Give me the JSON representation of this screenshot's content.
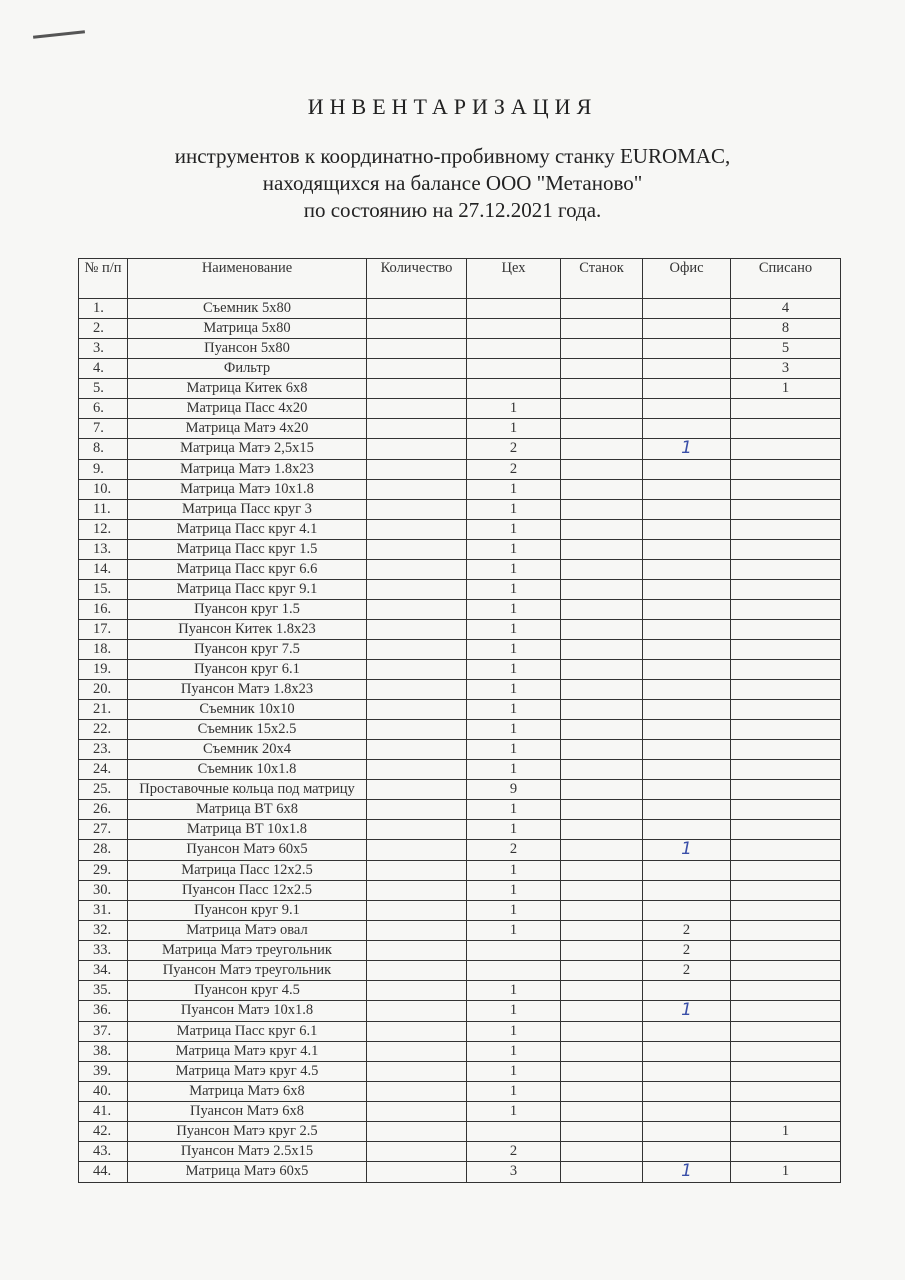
{
  "document": {
    "title": "ИНВЕНТАРИЗАЦИЯ",
    "subtitle_lines": [
      "инструментов к координатно-пробивному станку EUROMAC,",
      "находящихся на балансе ООО \"Метаново\"",
      "по состоянию на 27.12.2021 года."
    ]
  },
  "table": {
    "headers": [
      "№ п/п",
      "Наименование",
      "Количество",
      "Цех",
      "Станок",
      "Офис",
      "Списано"
    ],
    "handwritten_color": "#3a4fa8",
    "rows": [
      [
        "1.",
        "Съемник 5х80",
        "",
        "",
        "",
        "",
        "4"
      ],
      [
        "2.",
        "Матрица 5х80",
        "",
        "",
        "",
        "",
        "8"
      ],
      [
        "3.",
        "Пуансон 5х80",
        "",
        "",
        "",
        "",
        "5"
      ],
      [
        "4.",
        "Фильтр",
        "",
        "",
        "",
        "",
        "3"
      ],
      [
        "5.",
        "Матрица Китек 6х8",
        "",
        "",
        "",
        "",
        "1"
      ],
      [
        "6.",
        "Матрица Пасс 4х20",
        "",
        "1",
        "",
        "",
        ""
      ],
      [
        "7.",
        "Матрица Матэ 4х20",
        "",
        "1",
        "",
        "",
        ""
      ],
      [
        "8.",
        "Матрица Матэ 2,5х15",
        "",
        "2",
        "",
        "1*",
        ""
      ],
      [
        "9.",
        "Матрица Матэ 1.8х23",
        "",
        "2",
        "",
        "",
        ""
      ],
      [
        "10.",
        "Матрица Матэ 10х1.8",
        "",
        "1",
        "",
        "",
        ""
      ],
      [
        "11.",
        "Матрица Пасс круг 3",
        "",
        "1",
        "",
        "",
        ""
      ],
      [
        "12.",
        "Матрица Пасс круг 4.1",
        "",
        "1",
        "",
        "",
        ""
      ],
      [
        "13.",
        "Матрица Пасс круг 1.5",
        "",
        "1",
        "",
        "",
        ""
      ],
      [
        "14.",
        "Матрица Пасс круг 6.6",
        "",
        "1",
        "",
        "",
        ""
      ],
      [
        "15.",
        "Матрица Пасс круг 9.1",
        "",
        "1",
        "",
        "",
        ""
      ],
      [
        "16.",
        "Пуансон круг 1.5",
        "",
        "1",
        "",
        "",
        ""
      ],
      [
        "17.",
        "Пуансон Китек 1.8х23",
        "",
        "1",
        "",
        "",
        ""
      ],
      [
        "18.",
        "Пуансон круг 7.5",
        "",
        "1",
        "",
        "",
        ""
      ],
      [
        "19.",
        "Пуансон круг 6.1",
        "",
        "1",
        "",
        "",
        ""
      ],
      [
        "20.",
        "Пуансон Матэ 1.8х23",
        "",
        "1",
        "",
        "",
        ""
      ],
      [
        "21.",
        "Съемник 10х10",
        "",
        "1",
        "",
        "",
        ""
      ],
      [
        "22.",
        "Съемник 15х2.5",
        "",
        "1",
        "",
        "",
        ""
      ],
      [
        "23.",
        "Съемник 20х4",
        "",
        "1",
        "",
        "",
        ""
      ],
      [
        "24.",
        "Съемник 10х1.8",
        "",
        "1",
        "",
        "",
        ""
      ],
      [
        "25.",
        "Проставочные кольца под матрицу",
        "",
        "9",
        "",
        "",
        ""
      ],
      [
        "26.",
        "Матрица ВТ 6х8",
        "",
        "1",
        "",
        "",
        ""
      ],
      [
        "27.",
        "Матрица ВТ 10х1.8",
        "",
        "1",
        "",
        "",
        ""
      ],
      [
        "28.",
        "Пуансон Матэ 60х5",
        "",
        "2",
        "",
        "1*",
        ""
      ],
      [
        "29.",
        "Матрица Пасс 12х2.5",
        "",
        "1",
        "",
        "",
        ""
      ],
      [
        "30.",
        "Пуансон Пасс 12х2.5",
        "",
        "1",
        "",
        "",
        ""
      ],
      [
        "31.",
        "Пуансон круг 9.1",
        "",
        "1",
        "",
        "",
        ""
      ],
      [
        "32.",
        "Матрица Матэ овал",
        "",
        "1",
        "",
        "2",
        ""
      ],
      [
        "33.",
        "Матрица Матэ треугольник",
        "",
        "",
        "",
        "2",
        ""
      ],
      [
        "34.",
        "Пуансон Матэ треугольник",
        "",
        "",
        "",
        "2",
        ""
      ],
      [
        "35.",
        "Пуансон круг 4.5",
        "",
        "1",
        "",
        "",
        ""
      ],
      [
        "36.",
        "Пуансон Матэ 10х1.8",
        "",
        "1",
        "",
        "1*",
        ""
      ],
      [
        "37.",
        "Матрица Пасс круг 6.1",
        "",
        "1",
        "",
        "",
        ""
      ],
      [
        "38.",
        "Матрица Матэ круг 4.1",
        "",
        "1",
        "",
        "",
        ""
      ],
      [
        "39.",
        "Матрица Матэ круг 4.5",
        "",
        "1",
        "",
        "",
        ""
      ],
      [
        "40.",
        "Матрица Матэ 6х8",
        "",
        "1",
        "",
        "",
        ""
      ],
      [
        "41.",
        "Пуансон Матэ 6х8",
        "",
        "1",
        "",
        "",
        ""
      ],
      [
        "42.",
        "Пуансон Матэ круг 2.5",
        "",
        "",
        "",
        "",
        "1"
      ],
      [
        "43.",
        "Пуансон Матэ 2.5х15",
        "",
        "2",
        "",
        "",
        ""
      ],
      [
        "44.",
        "Матрица Матэ 60х5",
        "",
        "3",
        "",
        "1*",
        "1"
      ]
    ]
  }
}
